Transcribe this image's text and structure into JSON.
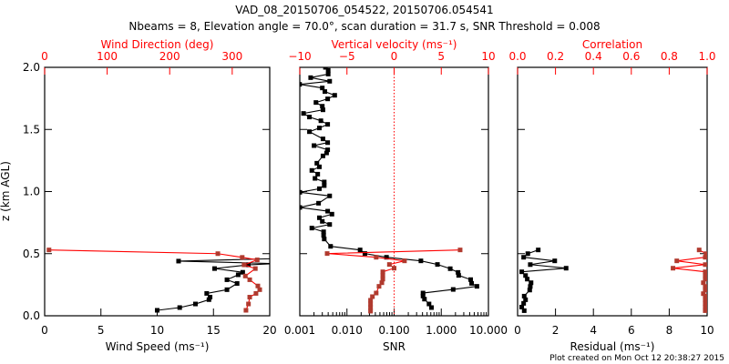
{
  "title_line1": "VAD_08_20150706_054522, 20150706.054541",
  "title_line2": "Nbeams = 8, Elevation angle = 70.0°, scan duration = 31.7 s, SNR Threshold = 0.008",
  "footer": "Plot created on Mon Oct 12 20:38:27 2015",
  "colors": {
    "black_series": "#000000",
    "red_line": "#ff0000",
    "red_marker": "#b03a2e"
  },
  "chart_data": [
    {
      "type": "line",
      "panel": "wind",
      "ylabel": "z (km AGL)",
      "ylim": [
        0,
        2
      ],
      "yticks": [
        "0.0",
        "0.5",
        "1.0",
        "1.5",
        "2.0"
      ],
      "xlabel": "Wind Speed (ms⁻¹)",
      "xlim": [
        0,
        20
      ],
      "xticks": [
        "0",
        "5",
        "10",
        "15",
        "20"
      ],
      "top_xlabel": "Wind Direction (deg)",
      "top_xlim": [
        0,
        360
      ],
      "top_xticks": [
        "0",
        "100",
        "200",
        "300"
      ],
      "series": [
        {
          "name": "Wind Speed",
          "axis": "bottom",
          "color": "#000000",
          "points": [
            [
              10.0,
              0.044
            ],
            [
              12.0,
              0.066
            ],
            [
              13.4,
              0.095
            ],
            [
              14.6,
              0.13
            ],
            [
              14.7,
              0.15
            ],
            [
              14.4,
              0.18
            ],
            [
              16.2,
              0.21
            ],
            [
              17.1,
              0.26
            ],
            [
              16.2,
              0.29
            ],
            [
              17.2,
              0.33
            ],
            [
              17.6,
              0.35
            ],
            [
              15.1,
              0.38
            ],
            [
              18.1,
              0.41
            ],
            [
              20.5,
              0.42
            ],
            [
              11.9,
              0.44
            ],
            [
              20.5,
              0.46
            ],
            [
              21,
              0.48
            ]
          ]
        },
        {
          "name": "Wind Direction",
          "axis": "top",
          "color": "#ff0000",
          "points": [
            [
              322,
              0.044
            ],
            [
              326,
              0.095
            ],
            [
              328,
              0.15
            ],
            [
              338,
              0.18
            ],
            [
              344,
              0.21
            ],
            [
              341,
              0.24
            ],
            [
              328,
              0.29
            ],
            [
              321,
              0.32
            ],
            [
              337,
              0.38
            ],
            [
              319,
              0.41
            ],
            [
              340,
              0.45
            ],
            [
              316,
              0.47
            ],
            [
              277,
              0.5
            ],
            [
              7,
              0.53
            ]
          ]
        }
      ]
    },
    {
      "type": "line",
      "panel": "snr",
      "xlabel": "SNR",
      "xscale": "log",
      "xlim": [
        0.001,
        10
      ],
      "xticks": [
        "0.001",
        "0.010",
        "0.100",
        "1.000",
        "10.000"
      ],
      "top_xlabel": "Vertical velocity (ms⁻¹)",
      "top_xlim": [
        -10,
        10
      ],
      "top_xticks": [
        "−10",
        "−5",
        "0",
        "5",
        "10"
      ],
      "ylim": [
        0,
        2
      ],
      "reference_line": {
        "axis": "top",
        "value": 0
      },
      "series": [
        {
          "name": "SNR",
          "axis": "bottom",
          "color": "#000000",
          "points": [
            [
              0.0035,
              2.0
            ],
            [
              0.004,
              1.976
            ],
            [
              0.004,
              1.946
            ],
            [
              0.0017,
              1.917
            ],
            [
              0.0043,
              1.888
            ],
            [
              0.00099,
              1.863
            ],
            [
              0.003,
              1.834
            ],
            [
              0.0034,
              1.805
            ],
            [
              0.0055,
              1.775
            ],
            [
              0.0039,
              1.746
            ],
            [
              0.0022,
              1.717
            ],
            [
              0.003,
              1.687
            ],
            [
              0.0031,
              1.658
            ],
            [
              0.0012,
              1.629
            ],
            [
              0.0016,
              1.6
            ],
            [
              0.0028,
              1.57
            ],
            [
              0.0039,
              1.541
            ],
            [
              0.0026,
              1.512
            ],
            [
              0.0016,
              1.482
            ],
            [
              0.0031,
              1.424
            ],
            [
              0.0039,
              1.394
            ],
            [
              0.002,
              1.37
            ],
            [
              0.0039,
              1.336
            ],
            [
              0.0037,
              1.311
            ],
            [
              0.0031,
              1.287
            ],
            [
              0.0023,
              1.228
            ],
            [
              0.0026,
              1.199
            ],
            [
              0.0018,
              1.17
            ],
            [
              0.0024,
              1.14
            ],
            [
              0.0021,
              1.106
            ],
            [
              0.0033,
              1.077
            ],
            [
              0.0033,
              1.048
            ],
            [
              0.0026,
              1.023
            ],
            [
              0.001,
              0.994
            ],
            [
              0.0043,
              0.965
            ],
            [
              0.0025,
              0.906
            ],
            [
              0.001,
              0.872
            ],
            [
              0.0039,
              0.842
            ],
            [
              0.0048,
              0.818
            ],
            [
              0.0026,
              0.789
            ],
            [
              0.003,
              0.76
            ],
            [
              0.0043,
              0.735
            ],
            [
              0.0018,
              0.706
            ],
            [
              0.0032,
              0.676
            ],
            [
              0.0032,
              0.647
            ],
            [
              0.0033,
              0.618
            ],
            [
              0.0045,
              0.559
            ],
            [
              0.019,
              0.53
            ],
            [
              0.024,
              0.501
            ],
            [
              0.069,
              0.471
            ],
            [
              0.37,
              0.442
            ],
            [
              0.83,
              0.413
            ],
            [
              1.55,
              0.379
            ],
            [
              2.27,
              0.349
            ],
            [
              2.34,
              0.325
            ],
            [
              4.2,
              0.291
            ],
            [
              4.4,
              0.261
            ],
            [
              5.7,
              0.237
            ],
            [
              1.79,
              0.212
            ],
            [
              0.41,
              0.183
            ],
            [
              0.41,
              0.159
            ],
            [
              0.44,
              0.134
            ],
            [
              0.55,
              0.095
            ],
            [
              0.62,
              0.066
            ]
          ]
        },
        {
          "name": "Vertical velocity",
          "axis": "top",
          "color": "#ff0000",
          "points": [
            [
              7.0,
              0.53
            ],
            [
              -7.1,
              0.501
            ],
            [
              -1.9,
              0.471
            ],
            [
              1.1,
              0.442
            ],
            [
              -0.5,
              0.413
            ],
            [
              0,
              0.383
            ],
            [
              -1.2,
              0.354
            ],
            [
              -1.2,
              0.325
            ],
            [
              -1.2,
              0.295
            ],
            [
              -1.3,
              0.266
            ],
            [
              -1.6,
              0.237
            ],
            [
              -1.9,
              0.183
            ],
            [
              -2.3,
              0.154
            ],
            [
              -2.5,
              0.125
            ],
            [
              -2.5,
              0.095
            ],
            [
              -2.5,
              0.066
            ],
            [
              -2.5,
              0.037
            ]
          ]
        }
      ]
    },
    {
      "type": "line",
      "panel": "residual",
      "xlabel": "Residual (ms⁻¹)",
      "xlim": [
        0,
        10
      ],
      "xticks": [
        "0",
        "2",
        "4",
        "6",
        "8",
        "10"
      ],
      "top_xlabel": "Correlation",
      "top_xlim": [
        0,
        1
      ],
      "top_xticks": [
        "0.0",
        "0.2",
        "0.4",
        "0.6",
        "0.8",
        "1.0"
      ],
      "ylim": [
        0,
        2
      ],
      "series": [
        {
          "name": "Residual",
          "axis": "bottom",
          "color": "#000000",
          "points": [
            [
              1.09,
              0.53
            ],
            [
              0.54,
              0.5
            ],
            [
              0.32,
              0.471
            ],
            [
              1.96,
              0.442
            ],
            [
              0.67,
              0.412
            ],
            [
              2.56,
              0.383
            ],
            [
              0.22,
              0.354
            ],
            [
              0.42,
              0.324
            ],
            [
              0.51,
              0.295
            ],
            [
              0.71,
              0.266
            ],
            [
              0.67,
              0.236
            ],
            [
              0.64,
              0.207
            ],
            [
              0.35,
              0.158
            ],
            [
              0.42,
              0.129
            ],
            [
              0.32,
              0.1
            ],
            [
              0.22,
              0.07
            ],
            [
              0.35,
              0.041
            ]
          ]
        },
        {
          "name": "Correlation",
          "axis": "top",
          "color": "#ff0000",
          "points": [
            [
              0.958,
              0.53
            ],
            [
              0.994,
              0.5
            ],
            [
              0.99,
              0.471
            ],
            [
              0.84,
              0.442
            ],
            [
              0.99,
              0.412
            ],
            [
              0.82,
              0.383
            ],
            [
              0.99,
              0.354
            ],
            [
              0.99,
              0.324
            ],
            [
              0.99,
              0.295
            ],
            [
              0.98,
              0.266
            ],
            [
              0.99,
              0.236
            ],
            [
              0.99,
              0.207
            ],
            [
              0.98,
              0.178
            ],
            [
              0.99,
              0.158
            ],
            [
              0.99,
              0.129
            ],
            [
              0.99,
              0.1
            ],
            [
              0.99,
              0.07
            ],
            [
              0.99,
              0.041
            ]
          ]
        }
      ]
    }
  ]
}
